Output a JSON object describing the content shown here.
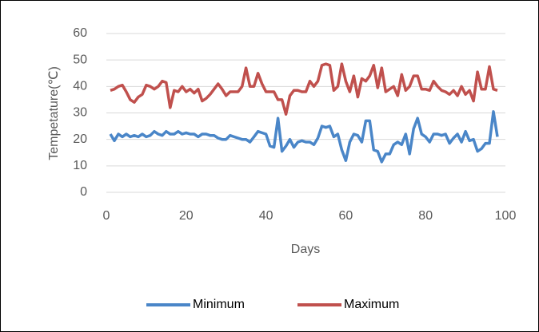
{
  "chart_data": {
    "type": "line",
    "x_label": "Days",
    "y_label": "Tempetature(℃)",
    "x": [
      1,
      2,
      3,
      4,
      5,
      6,
      7,
      8,
      9,
      10,
      11,
      12,
      13,
      14,
      15,
      16,
      17,
      18,
      19,
      20,
      21,
      22,
      23,
      24,
      25,
      26,
      27,
      28,
      29,
      30,
      31,
      32,
      33,
      34,
      35,
      36,
      37,
      38,
      39,
      40,
      41,
      42,
      43,
      44,
      45,
      46,
      47,
      48,
      49,
      50,
      51,
      52,
      53,
      54,
      55,
      56,
      57,
      58,
      59,
      60,
      61,
      62,
      63,
      64,
      65,
      66,
      67,
      68,
      69,
      70,
      71,
      72,
      73,
      74,
      75,
      76,
      77,
      78,
      79,
      80,
      81,
      82,
      83,
      84,
      85,
      86,
      87,
      88,
      89,
      90,
      91,
      92,
      93,
      94,
      95,
      96,
      97,
      98
    ],
    "series": [
      {
        "name": "Minimum",
        "color": "#4a86c8",
        "values": [
          22,
          19.5,
          22,
          21,
          22,
          21,
          21.5,
          21,
          22,
          21,
          21.5,
          23,
          22,
          21.5,
          23,
          22,
          22,
          23,
          22,
          22.5,
          22,
          22,
          21,
          22,
          22,
          21.5,
          21.5,
          20.5,
          20,
          20,
          21.5,
          21,
          20.5,
          20,
          20,
          19,
          21,
          23,
          22.5,
          22,
          17.5,
          17,
          28,
          15.5,
          17.5,
          20,
          17,
          19,
          19.5,
          19,
          19,
          18,
          20.5,
          25,
          24.5,
          25,
          21,
          22,
          16,
          12,
          19,
          22,
          21.5,
          19,
          27,
          27,
          16,
          15.5,
          11.5,
          14.5,
          14.5,
          18,
          19,
          18,
          22,
          14.5,
          24,
          28,
          22,
          21,
          19,
          22,
          22,
          21.5,
          22,
          18.5,
          20.5,
          22,
          19,
          23,
          19.5,
          20,
          15.5,
          16.5,
          18.5,
          18.5,
          30.5,
          21
        ]
      },
      {
        "name": "Maximum",
        "color": "#c0504d",
        "values": [
          38.5,
          39,
          40,
          40.5,
          38,
          35,
          34,
          36,
          37,
          40.5,
          40,
          39,
          40,
          42,
          41.5,
          32,
          38.5,
          38,
          40,
          38,
          39,
          37.5,
          39,
          34.5,
          35.5,
          37,
          39,
          41,
          39,
          36.5,
          38,
          38,
          38,
          40,
          47,
          40,
          40,
          45,
          41,
          38,
          38,
          38,
          35,
          35,
          29.5,
          36.5,
          38.5,
          38.5,
          38,
          38,
          42,
          40,
          42,
          48,
          48.5,
          48,
          38.5,
          40,
          48.5,
          42,
          38,
          44,
          36,
          43,
          42,
          44,
          48,
          39.5,
          47,
          38,
          39,
          40,
          36.5,
          44.5,
          38.5,
          40,
          44,
          44,
          39,
          39,
          38.5,
          42,
          40,
          38.5,
          38,
          37,
          38.5,
          36.5,
          40,
          37,
          38.5,
          34.5,
          45.5,
          39,
          39,
          47.5,
          39,
          38.5
        ]
      }
    ],
    "xlim": [
      0,
      100
    ],
    "xticks": [
      0,
      20,
      40,
      60,
      80,
      100
    ],
    "ylim": [
      0,
      60
    ],
    "yticks": [
      0,
      10,
      20,
      30,
      40,
      50,
      60
    ],
    "grid": true,
    "legend": "bottom"
  }
}
